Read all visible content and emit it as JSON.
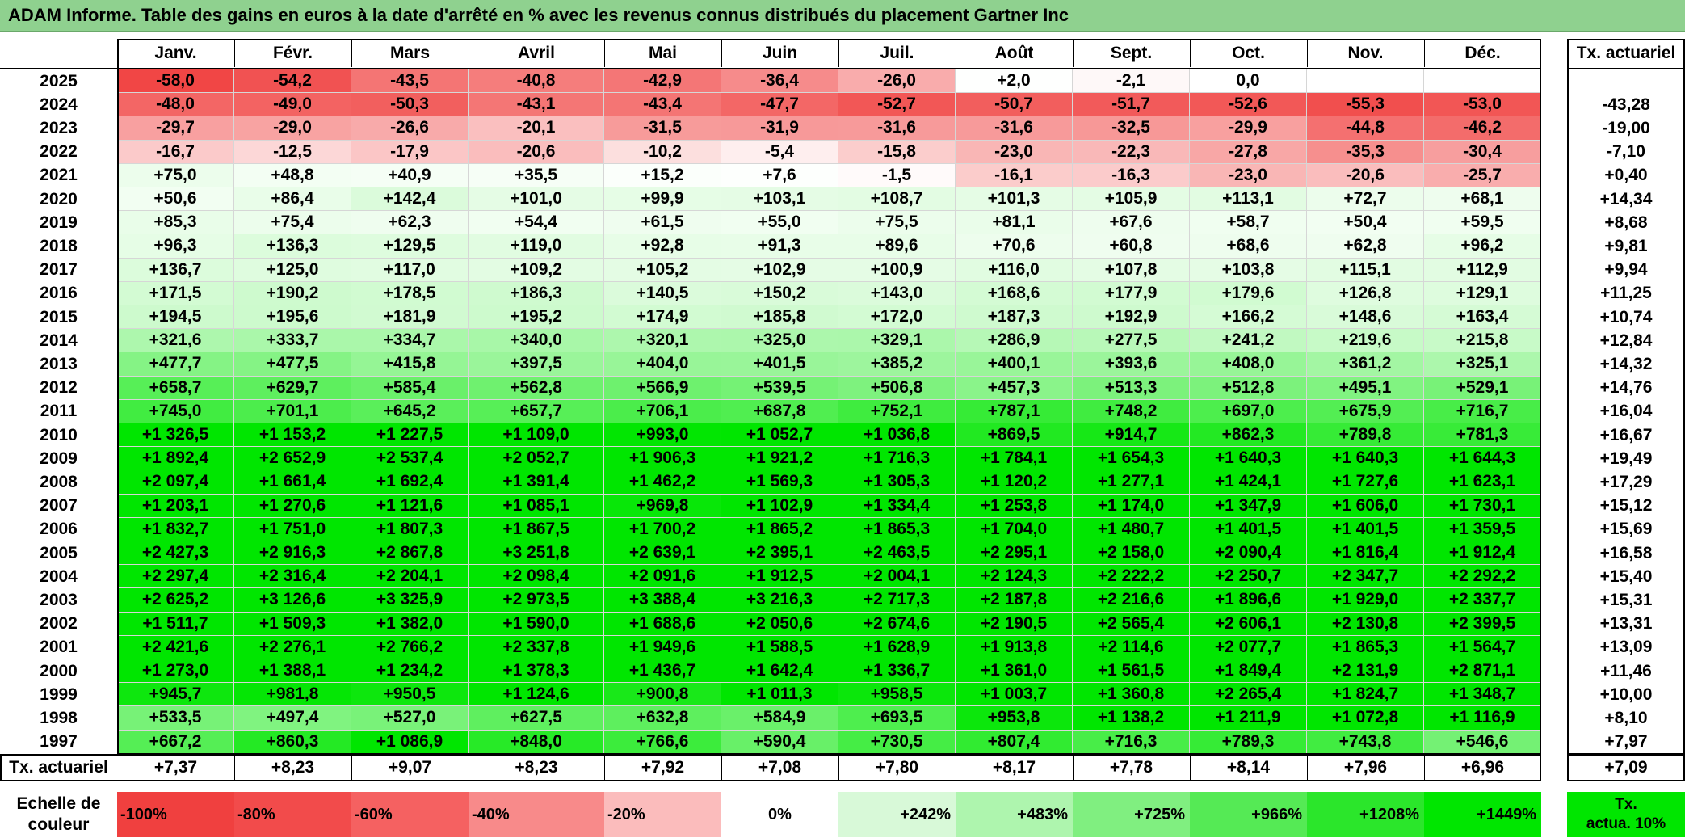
{
  "title": "ADAM Informe. Table des gains en euros à la date d'arrêté en % avec les revenus connus distribués du placement Gartner Inc",
  "chart_data": {
    "type": "heatmap",
    "title": "ADAM Informe. Table des gains en euros à la date d'arrêté en % avec les revenus connus distribués du placement Gartner Inc",
    "columns": [
      "Janv.",
      "Févr.",
      "Mars",
      "Avril",
      "Mai",
      "Juin",
      "Juil.",
      "Août",
      "Sept.",
      "Oct.",
      "Nov.",
      "Déc."
    ],
    "rate_header": "Tx. actuariel",
    "rows": [
      {
        "year": "2025",
        "values": [
          "-58,0",
          "-54,2",
          "-43,5",
          "-40,8",
          "-42,9",
          "-36,4",
          "-26,0",
          "+2,0",
          "-2,1",
          "0,0",
          "",
          ""
        ],
        "rate": ""
      },
      {
        "year": "2024",
        "values": [
          "-48,0",
          "-49,0",
          "-50,3",
          "-43,1",
          "-43,4",
          "-47,7",
          "-52,7",
          "-50,7",
          "-51,7",
          "-52,6",
          "-55,3",
          "-53,0"
        ],
        "rate": "-43,28"
      },
      {
        "year": "2023",
        "values": [
          "-29,7",
          "-29,0",
          "-26,6",
          "-20,1",
          "-31,5",
          "-31,9",
          "-31,6",
          "-31,6",
          "-32,5",
          "-29,9",
          "-44,8",
          "-46,2"
        ],
        "rate": "-19,00"
      },
      {
        "year": "2022",
        "values": [
          "-16,7",
          "-12,5",
          "-17,9",
          "-20,6",
          "-10,2",
          "-5,4",
          "-15,8",
          "-23,0",
          "-22,3",
          "-27,8",
          "-35,3",
          "-30,4"
        ],
        "rate": "-7,10"
      },
      {
        "year": "2021",
        "values": [
          "+75,0",
          "+48,8",
          "+40,9",
          "+35,5",
          "+15,2",
          "+7,6",
          "-1,5",
          "-16,1",
          "-16,3",
          "-23,0",
          "-20,6",
          "-25,7"
        ],
        "rate": "+0,40"
      },
      {
        "year": "2020",
        "values": [
          "+50,6",
          "+86,4",
          "+142,4",
          "+101,0",
          "+99,9",
          "+103,1",
          "+108,7",
          "+101,3",
          "+105,9",
          "+113,1",
          "+72,7",
          "+68,1"
        ],
        "rate": "+14,34"
      },
      {
        "year": "2019",
        "values": [
          "+85,3",
          "+75,4",
          "+62,3",
          "+54,4",
          "+61,5",
          "+55,0",
          "+75,5",
          "+81,1",
          "+67,6",
          "+58,7",
          "+50,4",
          "+59,5"
        ],
        "rate": "+8,68"
      },
      {
        "year": "2018",
        "values": [
          "+96,3",
          "+136,3",
          "+129,5",
          "+119,0",
          "+92,8",
          "+91,3",
          "+89,6",
          "+70,6",
          "+60,8",
          "+68,6",
          "+62,8",
          "+96,2"
        ],
        "rate": "+9,81"
      },
      {
        "year": "2017",
        "values": [
          "+136,7",
          "+125,0",
          "+117,0",
          "+109,2",
          "+105,2",
          "+102,9",
          "+100,9",
          "+116,0",
          "+107,8",
          "+103,8",
          "+115,1",
          "+112,9"
        ],
        "rate": "+9,94"
      },
      {
        "year": "2016",
        "values": [
          "+171,5",
          "+190,2",
          "+178,5",
          "+186,3",
          "+140,5",
          "+150,2",
          "+143,0",
          "+168,6",
          "+177,9",
          "+179,6",
          "+126,8",
          "+129,1"
        ],
        "rate": "+11,25"
      },
      {
        "year": "2015",
        "values": [
          "+194,5",
          "+195,6",
          "+181,9",
          "+195,2",
          "+174,9",
          "+185,8",
          "+172,0",
          "+187,3",
          "+192,9",
          "+166,2",
          "+148,6",
          "+163,4"
        ],
        "rate": "+10,74"
      },
      {
        "year": "2014",
        "values": [
          "+321,6",
          "+333,7",
          "+334,7",
          "+340,0",
          "+320,1",
          "+325,0",
          "+329,1",
          "+286,9",
          "+277,5",
          "+241,2",
          "+219,6",
          "+215,8"
        ],
        "rate": "+12,84"
      },
      {
        "year": "2013",
        "values": [
          "+477,7",
          "+477,5",
          "+415,8",
          "+397,5",
          "+404,0",
          "+401,5",
          "+385,2",
          "+400,1",
          "+393,6",
          "+408,0",
          "+361,2",
          "+325,1"
        ],
        "rate": "+14,32"
      },
      {
        "year": "2012",
        "values": [
          "+658,7",
          "+629,7",
          "+585,4",
          "+562,8",
          "+566,9",
          "+539,5",
          "+506,8",
          "+457,3",
          "+513,3",
          "+512,8",
          "+495,1",
          "+529,1"
        ],
        "rate": "+14,76"
      },
      {
        "year": "2011",
        "values": [
          "+745,0",
          "+701,1",
          "+645,2",
          "+657,7",
          "+706,1",
          "+687,8",
          "+752,1",
          "+787,1",
          "+748,2",
          "+697,0",
          "+675,9",
          "+716,7"
        ],
        "rate": "+16,04"
      },
      {
        "year": "2010",
        "values": [
          "+1 326,5",
          "+1 153,2",
          "+1 227,5",
          "+1 109,0",
          "+993,0",
          "+1 052,7",
          "+1 036,8",
          "+869,5",
          "+914,7",
          "+862,3",
          "+789,8",
          "+781,3"
        ],
        "rate": "+16,67"
      },
      {
        "year": "2009",
        "values": [
          "+1 892,4",
          "+2 652,9",
          "+2 537,4",
          "+2 052,7",
          "+1 906,3",
          "+1 921,2",
          "+1 716,3",
          "+1 784,1",
          "+1 654,3",
          "+1 640,3",
          "+1 640,3",
          "+1 644,3"
        ],
        "rate": "+19,49"
      },
      {
        "year": "2008",
        "values": [
          "+2 097,4",
          "+1 661,4",
          "+1 692,4",
          "+1 391,4",
          "+1 462,2",
          "+1 569,3",
          "+1 305,3",
          "+1 120,2",
          "+1 277,1",
          "+1 424,1",
          "+1 727,6",
          "+1 623,1"
        ],
        "rate": "+17,29"
      },
      {
        "year": "2007",
        "values": [
          "+1 203,1",
          "+1 270,6",
          "+1 121,6",
          "+1 085,1",
          "+969,8",
          "+1 102,9",
          "+1 334,4",
          "+1 253,8",
          "+1 174,0",
          "+1 347,9",
          "+1 606,0",
          "+1 730,1"
        ],
        "rate": "+15,12"
      },
      {
        "year": "2006",
        "values": [
          "+1 832,7",
          "+1 751,0",
          "+1 807,3",
          "+1 867,5",
          "+1 700,2",
          "+1 865,2",
          "+1 865,3",
          "+1 704,0",
          "+1 480,7",
          "+1 401,5",
          "+1 401,5",
          "+1 359,5"
        ],
        "rate": "+15,69"
      },
      {
        "year": "2005",
        "values": [
          "+2 427,3",
          "+2 916,3",
          "+2 867,8",
          "+3 251,8",
          "+2 639,1",
          "+2 395,1",
          "+2 463,5",
          "+2 295,1",
          "+2 158,0",
          "+2 090,4",
          "+1 816,4",
          "+1 912,4"
        ],
        "rate": "+16,58"
      },
      {
        "year": "2004",
        "values": [
          "+2 297,4",
          "+2 316,4",
          "+2 204,1",
          "+2 098,4",
          "+2 091,6",
          "+1 912,5",
          "+2 004,1",
          "+2 124,3",
          "+2 222,2",
          "+2 250,7",
          "+2 347,7",
          "+2 292,2"
        ],
        "rate": "+15,40"
      },
      {
        "year": "2003",
        "values": [
          "+2 625,2",
          "+3 126,6",
          "+3 325,9",
          "+2 973,5",
          "+3 388,4",
          "+3 216,3",
          "+2 717,3",
          "+2 187,8",
          "+2 216,6",
          "+1 896,6",
          "+1 929,0",
          "+2 337,7"
        ],
        "rate": "+15,31"
      },
      {
        "year": "2002",
        "values": [
          "+1 511,7",
          "+1 509,3",
          "+1 382,0",
          "+1 590,0",
          "+1 688,6",
          "+2 050,6",
          "+2 674,6",
          "+2 190,5",
          "+2 565,4",
          "+2 606,1",
          "+2 130,8",
          "+2 399,5"
        ],
        "rate": "+13,31"
      },
      {
        "year": "2001",
        "values": [
          "+2 421,6",
          "+2 276,1",
          "+2 766,2",
          "+2 337,8",
          "+1 949,6",
          "+1 588,5",
          "+1 628,9",
          "+1 913,8",
          "+2 114,6",
          "+2 077,7",
          "+1 865,3",
          "+1 564,7"
        ],
        "rate": "+13,09"
      },
      {
        "year": "2000",
        "values": [
          "+1 273,0",
          "+1 388,1",
          "+1 234,2",
          "+1 378,3",
          "+1 436,7",
          "+1 642,4",
          "+1 336,7",
          "+1 361,0",
          "+1 561,5",
          "+1 849,4",
          "+2 131,9",
          "+2 871,1"
        ],
        "rate": "+11,46"
      },
      {
        "year": "1999",
        "values": [
          "+945,7",
          "+981,8",
          "+950,5",
          "+1 124,6",
          "+900,8",
          "+1 011,3",
          "+958,5",
          "+1 003,7",
          "+1 360,8",
          "+2 265,4",
          "+1 824,7",
          "+1 348,7"
        ],
        "rate": "+10,00"
      },
      {
        "year": "1998",
        "values": [
          "+533,5",
          "+497,4",
          "+527,0",
          "+627,5",
          "+632,8",
          "+584,9",
          "+693,5",
          "+953,8",
          "+1 138,2",
          "+1 211,9",
          "+1 072,8",
          "+1 116,9"
        ],
        "rate": "+8,10"
      },
      {
        "year": "1997",
        "values": [
          "+667,2",
          "+860,3",
          "+1 086,9",
          "+848,0",
          "+766,6",
          "+590,4",
          "+730,5",
          "+807,4",
          "+716,3",
          "+789,3",
          "+743,8",
          "+546,6"
        ],
        "rate": "+7,97"
      }
    ],
    "footer": {
      "label": "Tx. actuariel",
      "values": [
        "+7,37",
        "+8,23",
        "+9,07",
        "+8,23",
        "+7,92",
        "+7,08",
        "+7,80",
        "+8,17",
        "+7,78",
        "+8,14",
        "+7,96",
        "+6,96"
      ],
      "rate": "+7,09"
    },
    "scale": {
      "label_line1": "Echelle de",
      "label_line2": "couleur",
      "steps": [
        {
          "label": "-100%",
          "color": "#f0403f"
        },
        {
          "label": "-80%",
          "color": "#f24b4b"
        },
        {
          "label": "-60%",
          "color": "#f56161"
        },
        {
          "label": "-40%",
          "color": "#f88a8a"
        },
        {
          "label": "-20%",
          "color": "#fbbcbc"
        },
        {
          "label": "0%",
          "color": "#ffffff"
        },
        {
          "label": "+242%",
          "color": "#d8f9d8"
        },
        {
          "label": "+483%",
          "color": "#aef5ae"
        },
        {
          "label": "+725%",
          "color": "#80ef80"
        },
        {
          "label": "+966%",
          "color": "#55ea55"
        },
        {
          "label": "+1208%",
          "color": "#2be62b"
        },
        {
          "label": "+1449%",
          "color": "#00e600"
        }
      ],
      "rate_box_line1": "Tx.",
      "rate_box_line2": "actua. 10%"
    },
    "colors": {
      "max_negative": "#f0403f",
      "zero": "#ffffff",
      "max_positive": "#00e600",
      "title_band": "#8fd18f"
    }
  }
}
